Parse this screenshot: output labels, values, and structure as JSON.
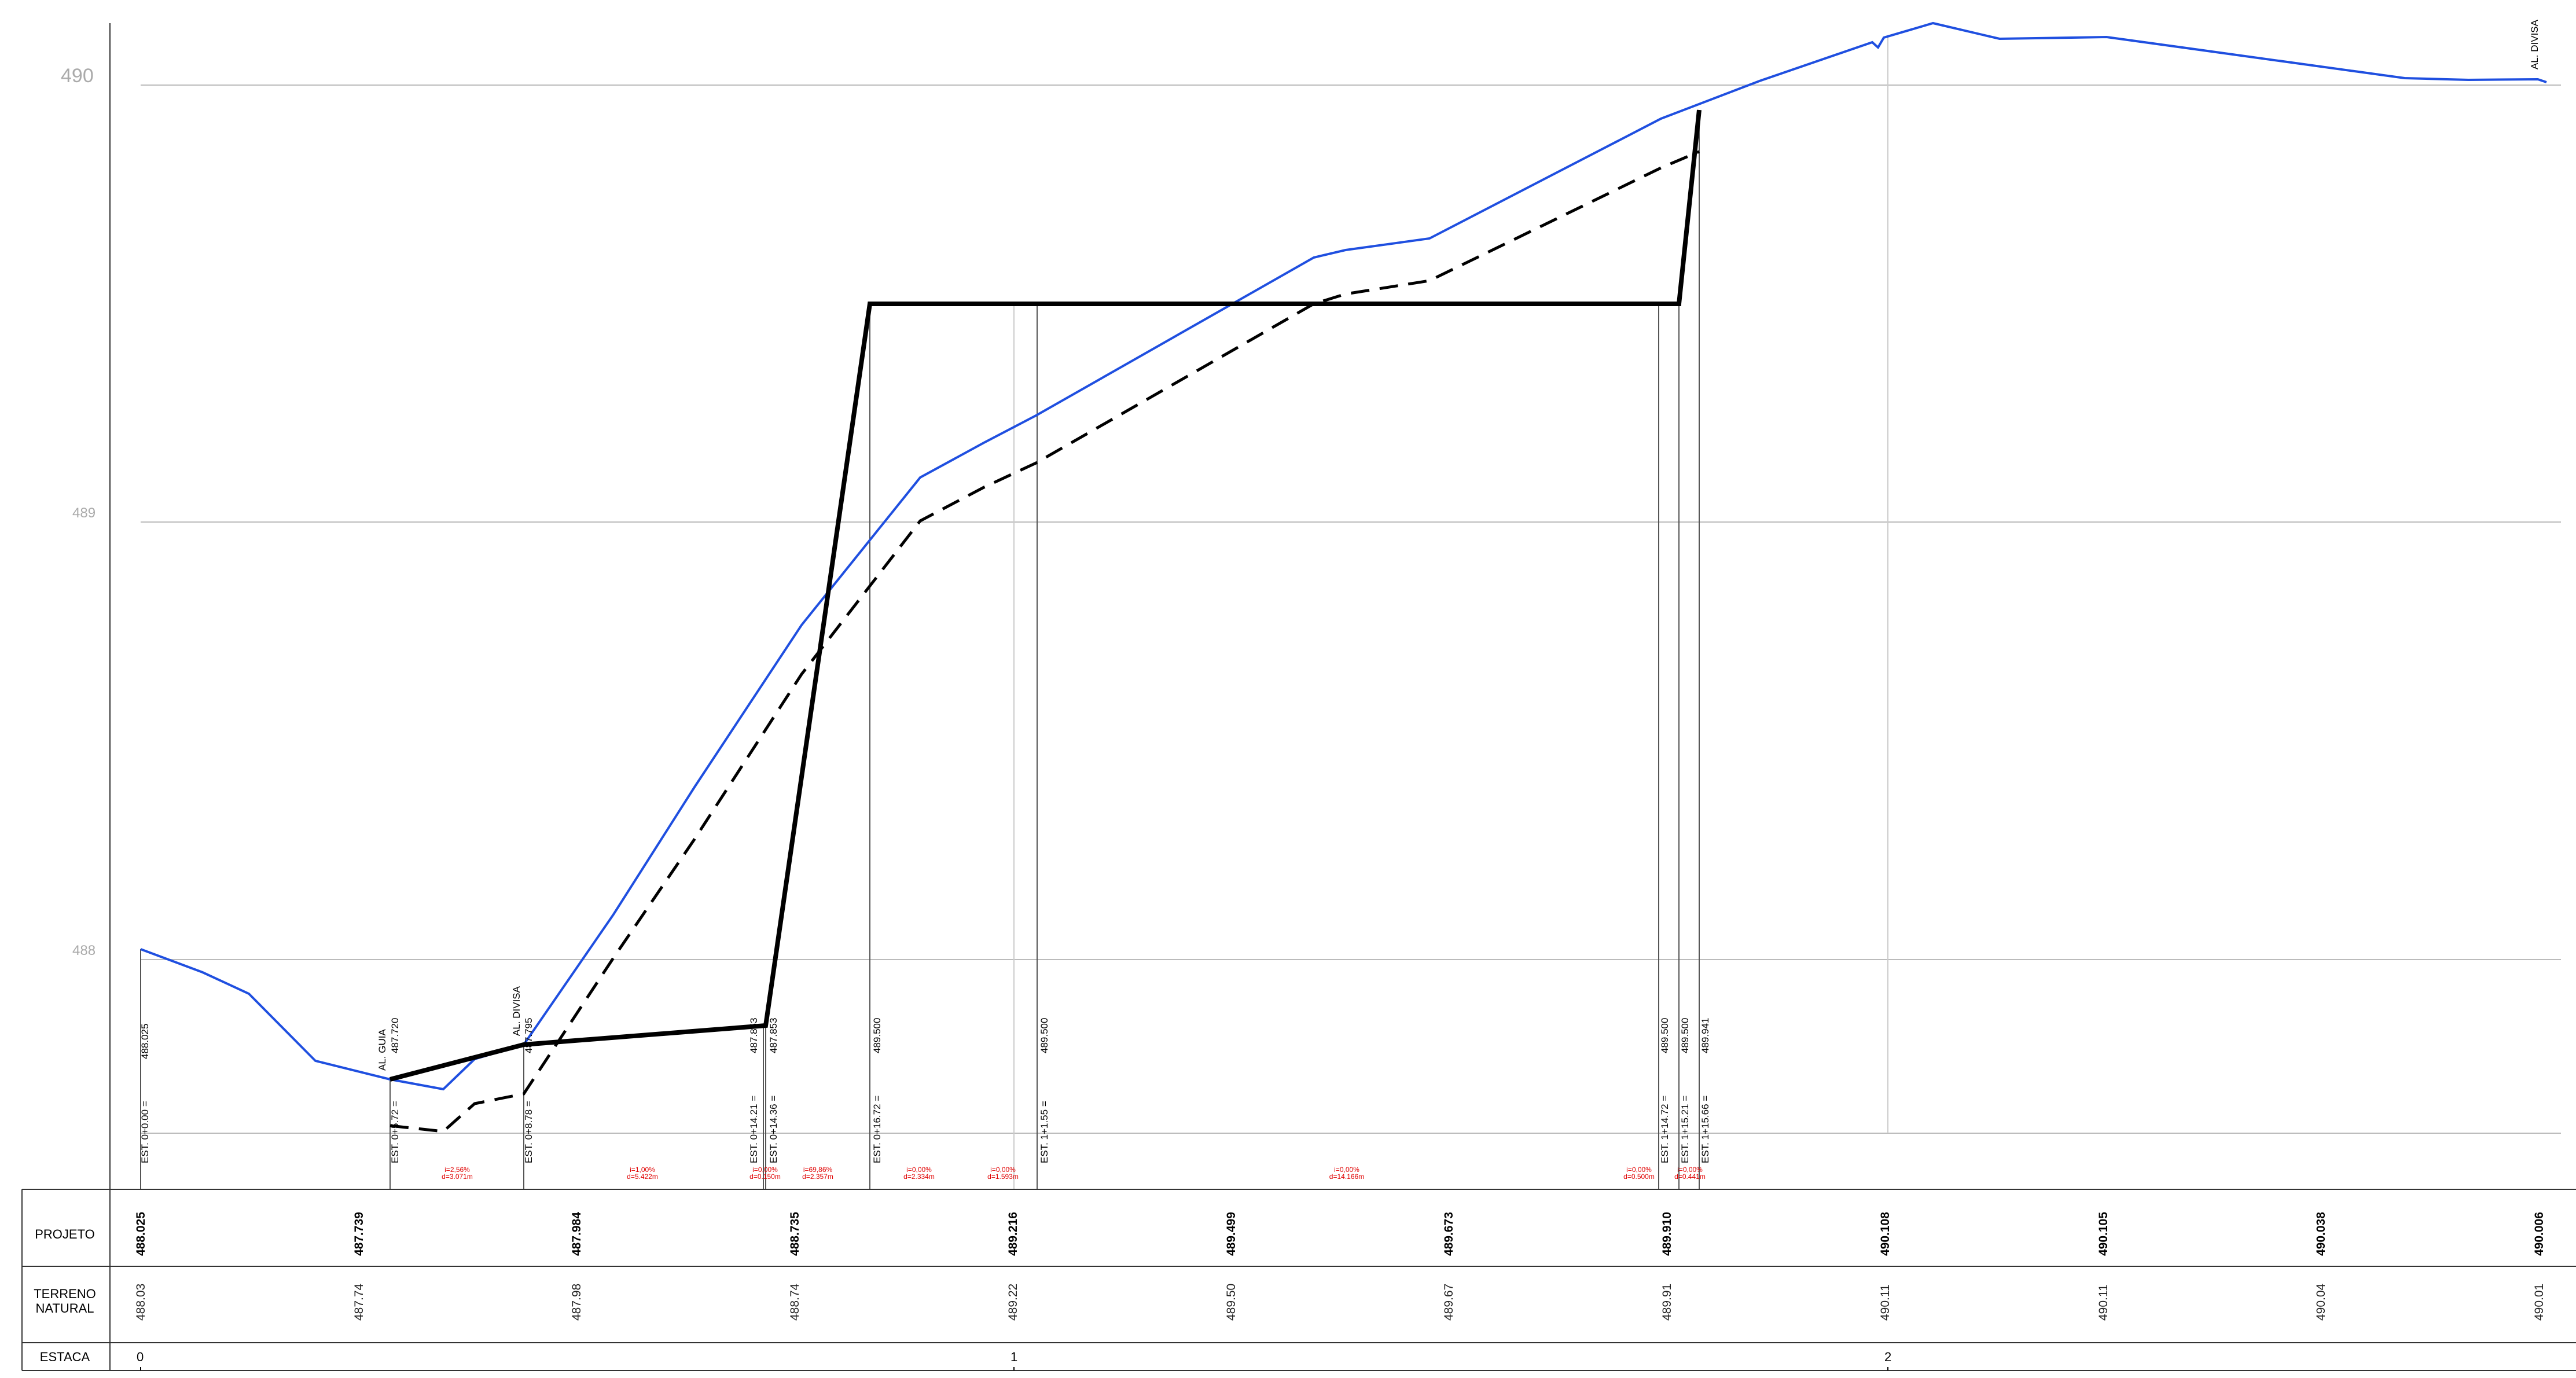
{
  "elevation_labels": [
    "490",
    "489",
    "488"
  ],
  "table_rows": {
    "projeto": "PROJETO",
    "terreno_line1": "TERRENO",
    "terreno_line2": "NATURAL",
    "estaca": "ESTACA"
  },
  "projeto_values": [
    "488.025",
    "487.739",
    "487.984",
    "488.735",
    "489.216",
    "489.499",
    "489.673",
    "489.910",
    "490.108",
    "490.105",
    "490.038",
    "490.006"
  ],
  "terreno_values": [
    "488.03",
    "487.74",
    "487.98",
    "488.74",
    "489.22",
    "489.50",
    "489.67",
    "489.91",
    "490.11",
    "490.11",
    "490.04",
    "490.01"
  ],
  "estaca_values": [
    "0",
    "1",
    "2"
  ],
  "station_labels": [
    {
      "est": "EST. 0+0.00 =",
      "elev": "488.025"
    },
    {
      "est": "EST. 0+5.72 =",
      "elev": "487.720"
    },
    {
      "est": "EST. 0+8.78 =",
      "elev": "487.795"
    },
    {
      "est": "EST. 0+14.21 =",
      "elev": "487.853"
    },
    {
      "est": "EST. 0+14.36 =",
      "elev": "487.853"
    },
    {
      "est": "EST. 0+16.72 =",
      "elev": "489.500"
    },
    {
      "est": "EST. 1+1.55 =",
      "elev": "489.500"
    },
    {
      "est": "EST. 1+14.72 =",
      "elev": "489.500"
    },
    {
      "est": "EST. 1+15.21 =",
      "elev": "489.500"
    },
    {
      "est": "EST. 1+15.66 =",
      "elev": "489.941"
    }
  ],
  "annotations": {
    "al_guia": "AL. GUIA",
    "al_divisa_1": "AL. DIVISA",
    "al_divisa_2": "AL. DIVISA"
  },
  "slope_labels": [
    {
      "i": "i=2,56%",
      "d": "d=3.071m"
    },
    {
      "i": "i=1,00%",
      "d": "d=5.422m"
    },
    {
      "i": "i=0,00%",
      "d": "d=0.150m"
    },
    {
      "i": "i=69,86%",
      "d": "d=2.357m"
    },
    {
      "i": "i=0,00%",
      "d": "d=2.334m"
    },
    {
      "i": "i=0,00%",
      "d": "d=1.593m"
    },
    {
      "i": "i=0,00%",
      "d": "d=14.166m"
    },
    {
      "i": "i=0,00%",
      "d": "d=0.500m"
    },
    {
      "i": "i=0,00%",
      "d": "d=0.441m"
    }
  ],
  "colors": {
    "terrain": "#1f4fe0",
    "project": "#000000",
    "slope_text": "#e00000",
    "grid": "#bbbbbb"
  }
}
